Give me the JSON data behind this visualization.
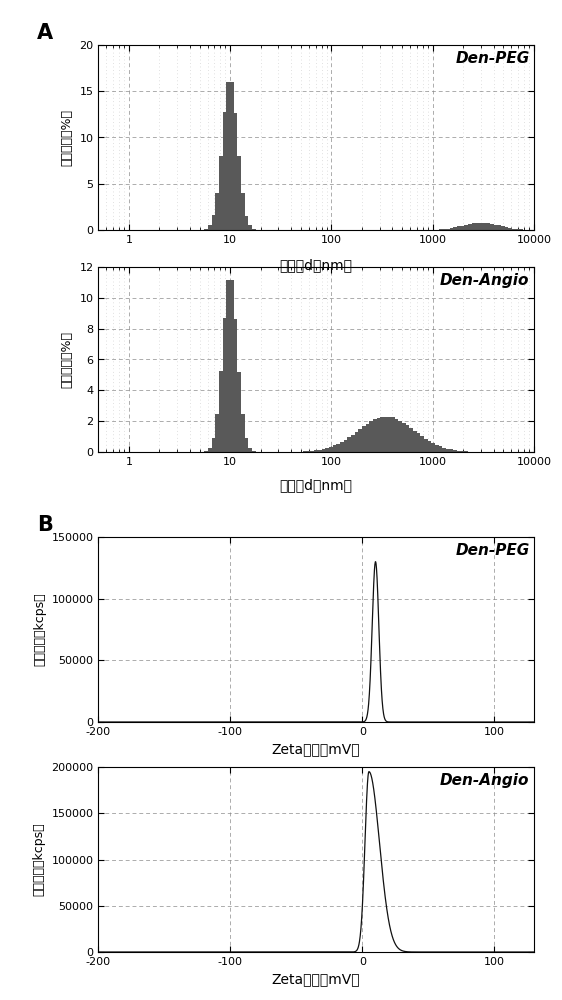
{
  "panel_A_label": "A",
  "panel_B_label": "B",
  "plot1_title": "Den-PEG",
  "plot2_title": "Den-Angio",
  "plot3_title": "Den-PEG",
  "plot4_title": "Den-Angio",
  "xlabel_size": "粒径（d，nm）",
  "ylabel_size": "信号强度（%）",
  "xlabel_zeta": "Zeta电位（mV）",
  "ylabel_zeta": "信号强度（kcps）",
  "bar_color": "#595959",
  "line_color": "#111111",
  "grid_color": "#888888",
  "ylim1": [
    0,
    20
  ],
  "ylim2": [
    0,
    12
  ],
  "ylim3": [
    0,
    150000
  ],
  "ylim4": [
    0,
    200000
  ],
  "yticks1": [
    0,
    5,
    10,
    15,
    20
  ],
  "yticks2": [
    0,
    2,
    4,
    6,
    8,
    10,
    12
  ],
  "yticks3": [
    0,
    50000,
    100000,
    150000
  ],
  "yticks4": [
    0,
    50000,
    100000,
    150000,
    200000
  ],
  "xticks_zeta": [
    -200,
    -100,
    0,
    100
  ],
  "xlim_size_lo": 0.5,
  "xlim_size_hi": 10000,
  "xlim_zeta_lo": -200,
  "xlim_zeta_hi": 130
}
